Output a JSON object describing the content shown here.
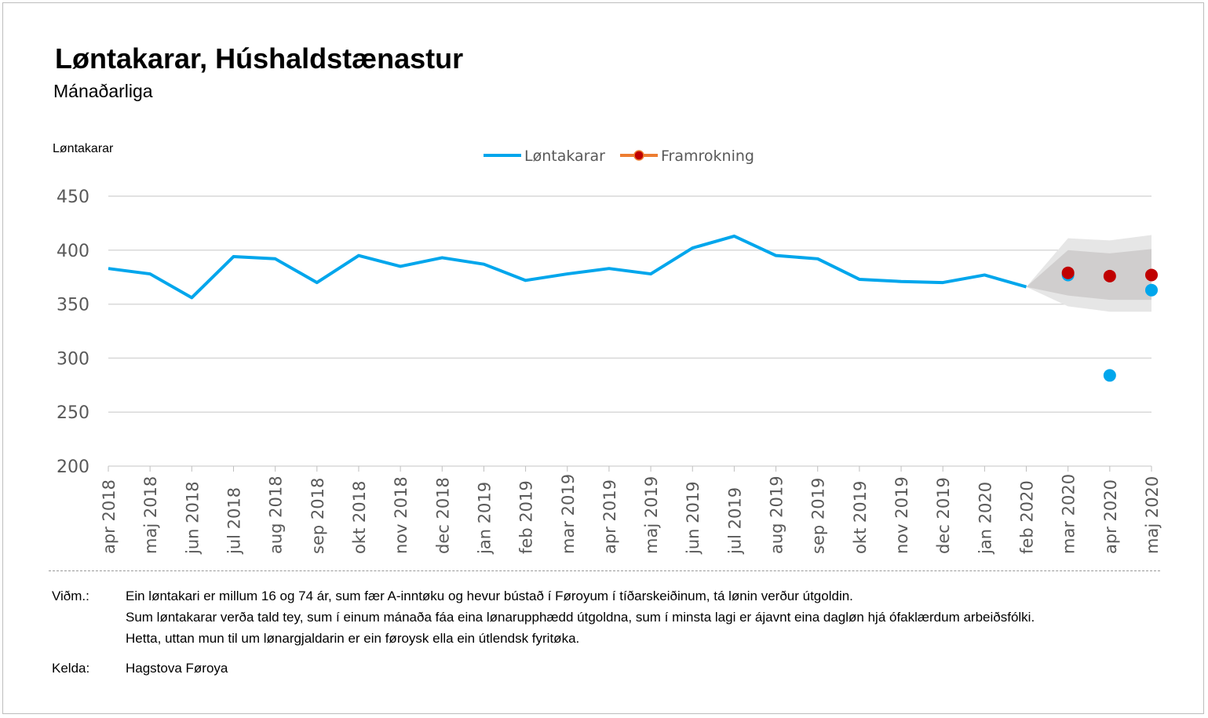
{
  "chart_data": {
    "type": "line",
    "title": "Løntakarar, Húshaldstænastur",
    "subtitle": "Mánaðarliga",
    "ylabel": "Løntakarar",
    "xlabel": "",
    "ylim": [
      200,
      450
    ],
    "yticks": [
      200,
      250,
      300,
      350,
      400,
      450
    ],
    "grid": true,
    "legend_position": "top-center",
    "categories": [
      "apr 2018",
      "maj 2018",
      "jun 2018",
      "jul 2018",
      "aug 2018",
      "sep 2018",
      "okt 2018",
      "nov 2018",
      "dec 2018",
      "jan 2019",
      "feb 2019",
      "mar 2019",
      "apr 2019",
      "maj 2019",
      "jun 2019",
      "jul 2019",
      "aug 2019",
      "sep 2019",
      "okt 2019",
      "nov 2019",
      "dec 2019",
      "jan 2020",
      "feb 2020",
      "mar 2020",
      "apr 2020",
      "maj 2020"
    ],
    "series": [
      {
        "name": "Løntakarar",
        "color": "#00a6ec",
        "type": "line",
        "values": [
          383,
          378,
          356,
          394,
          392,
          370,
          395,
          385,
          393,
          387,
          372,
          378,
          383,
          378,
          402,
          413,
          395,
          392,
          373,
          371,
          370,
          377,
          366,
          null,
          null,
          null
        ]
      },
      {
        "name": "",
        "color": "#00a6ec",
        "type": "scatter",
        "points": [
          {
            "x": "mar 2020",
            "y": 377
          },
          {
            "x": "apr 2020",
            "y": 284
          },
          {
            "x": "maj 2020",
            "y": 363
          }
        ]
      },
      {
        "name": "Framrokning",
        "color": "#c00000",
        "line_color": "#ed7d31",
        "type": "scatter",
        "points": [
          {
            "x": "mar 2020",
            "y": 379
          },
          {
            "x": "apr 2020",
            "y": 376
          },
          {
            "x": "maj 2020",
            "y": 377
          }
        ]
      }
    ],
    "bands": [
      {
        "color": "#e6e6e6",
        "x": [
          "feb 2020",
          "mar 2020",
          "apr 2020",
          "maj 2020"
        ],
        "upper": [
          366,
          411,
          409,
          414
        ],
        "lower": [
          366,
          348,
          343,
          343
        ]
      },
      {
        "color": "#d0cece",
        "x": [
          "feb 2020",
          "mar 2020",
          "apr 2020",
          "maj 2020"
        ],
        "upper": [
          366,
          400,
          397,
          401
        ],
        "lower": [
          366,
          358,
          354,
          354
        ]
      }
    ]
  },
  "notes": {
    "label": "Viðm.:",
    "lines": [
      "Ein løntakari er millum 16 og 74 ár, sum fær A-inntøku og hevur bústað í Føroyum í tíðarskeiðinum, tá lønin verður útgoldin.",
      "Sum løntakarar verða tald tey, sum í einum mánaða fáa eina lønarupphædd útgoldna, sum í minsta lagi er ájavnt eina dagløn hjá ófaklærdum arbeiðsfólki.",
      "Hetta, uttan mun til um lønargjaldarin er ein føroysk ella ein útlendsk fyritøka."
    ]
  },
  "source": {
    "label": "Kelda:",
    "value": "Hagstova Føroya"
  }
}
